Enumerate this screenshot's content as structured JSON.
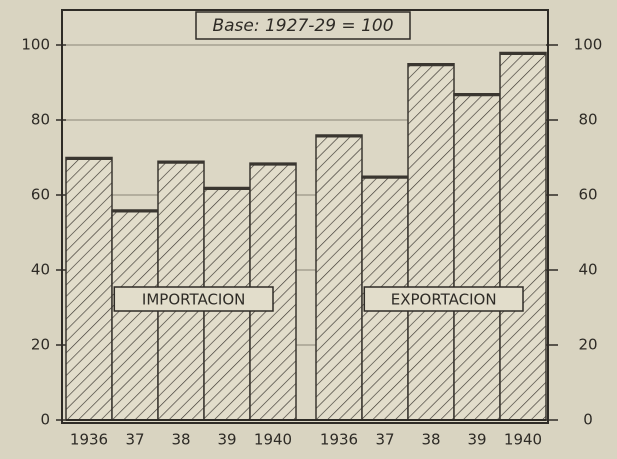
{
  "chart_data": {
    "type": "bar",
    "title": "Base: 1927-29 = 100",
    "categories": [
      "1936",
      "37",
      "38",
      "39",
      "1940",
      "1936",
      "37",
      "38",
      "39",
      "1940"
    ],
    "values": [
      70,
      56,
      69,
      62,
      68.5,
      76,
      65,
      95,
      87,
      98
    ],
    "color": "#3a3630",
    "annotations": [
      "IMPORTACION",
      "EXPORTACION"
    ],
    "ylim": [
      0,
      100
    ],
    "yticks": [
      0,
      20,
      40,
      60,
      80,
      100
    ],
    "y2lim": [
      0,
      100
    ],
    "y2ticks": [
      0,
      20,
      40,
      60,
      80,
      100
    ],
    "grid": true
  }
}
